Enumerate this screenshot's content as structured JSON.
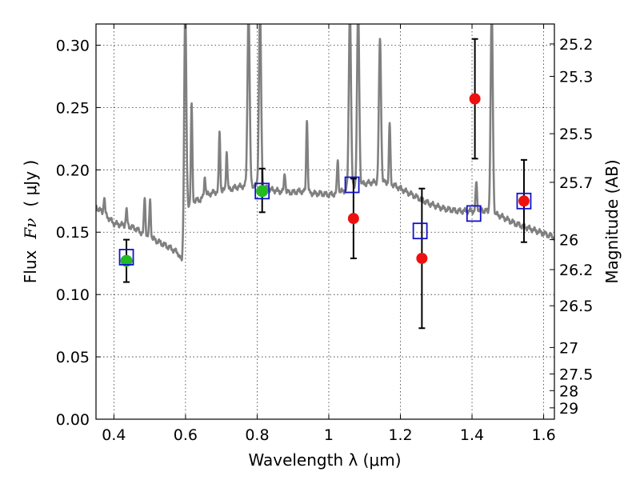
{
  "chart_data": {
    "type": "scatter",
    "xlabel": "Wavelength  λ (μm)",
    "ylabel_left_text": "Flux",
    "ylabel_left_symbol": "Fν",
    "ylabel_left_unit": "( μJy )",
    "ylabel_right": "Magnitude (AB)",
    "xlim": [
      0.35,
      1.63
    ],
    "ylim": [
      0.0,
      0.317
    ],
    "x_ticks": [
      0.4,
      0.6,
      0.8,
      1,
      1.2,
      1.4,
      1.6
    ],
    "x_tick_labels": [
      "0.4",
      "0.6",
      "0.8",
      "1",
      "1.2",
      "1.4",
      "1.6"
    ],
    "y_ticks": [
      0.0,
      0.05,
      0.1,
      0.15,
      0.2,
      0.25,
      0.3
    ],
    "y_tick_labels": [
      "0.00",
      "0.05",
      "0.10",
      "0.15",
      "0.20",
      "0.25",
      "0.30"
    ],
    "right_ticks": [
      {
        "label": "25.2",
        "flux": 0.301
      },
      {
        "label": "25.3",
        "flux": 0.275
      },
      {
        "label": "25.5",
        "flux": 0.229
      },
      {
        "label": "25.7",
        "flux": 0.19
      },
      {
        "label": "26",
        "flux": 0.144
      },
      {
        "label": "26.2",
        "flux": 0.12
      },
      {
        "label": "26.5",
        "flux": 0.091
      },
      {
        "label": "27",
        "flux": 0.0575
      },
      {
        "label": "27.5",
        "flux": 0.0363
      },
      {
        "label": "28",
        "flux": 0.0229
      },
      {
        "label": "29",
        "flux": 0.0091
      }
    ],
    "grid": true,
    "colors": {
      "model": "#808080",
      "green": "#22bb22",
      "red": "#ee1111",
      "square": "#1111cc",
      "errorbar": "#000000"
    },
    "model_spectrum": {
      "name": "",
      "continuum": [
        [
          0.35,
          0.17
        ],
        [
          0.36,
          0.168
        ],
        [
          0.37,
          0.165
        ],
        [
          0.38,
          0.163
        ],
        [
          0.39,
          0.16
        ],
        [
          0.4,
          0.157
        ],
        [
          0.42,
          0.156
        ],
        [
          0.44,
          0.155
        ],
        [
          0.46,
          0.153
        ],
        [
          0.48,
          0.149
        ],
        [
          0.5,
          0.146
        ],
        [
          0.52,
          0.143
        ],
        [
          0.54,
          0.14
        ],
        [
          0.56,
          0.137
        ],
        [
          0.58,
          0.133
        ],
        [
          0.59,
          0.126
        ],
        [
          0.595,
          0.135
        ],
        [
          0.6,
          0.168
        ],
        [
          0.61,
          0.172
        ],
        [
          0.62,
          0.175
        ],
        [
          0.64,
          0.176
        ],
        [
          0.66,
          0.18
        ],
        [
          0.68,
          0.182
        ],
        [
          0.7,
          0.183
        ],
        [
          0.72,
          0.184
        ],
        [
          0.74,
          0.186
        ],
        [
          0.76,
          0.187
        ],
        [
          0.78,
          0.188
        ],
        [
          0.8,
          0.187
        ],
        [
          0.82,
          0.186
        ],
        [
          0.84,
          0.184
        ],
        [
          0.86,
          0.183
        ],
        [
          0.88,
          0.182
        ],
        [
          0.9,
          0.182
        ],
        [
          0.92,
          0.183
        ],
        [
          0.94,
          0.182
        ],
        [
          0.96,
          0.181
        ],
        [
          0.98,
          0.181
        ],
        [
          1.0,
          0.18
        ],
        [
          1.02,
          0.181
        ],
        [
          1.04,
          0.183
        ],
        [
          1.06,
          0.186
        ],
        [
          1.08,
          0.188
        ],
        [
          1.1,
          0.189
        ],
        [
          1.12,
          0.19
        ],
        [
          1.14,
          0.19
        ],
        [
          1.16,
          0.19
        ],
        [
          1.18,
          0.188
        ],
        [
          1.2,
          0.185
        ],
        [
          1.22,
          0.182
        ],
        [
          1.24,
          0.179
        ],
        [
          1.26,
          0.176
        ],
        [
          1.28,
          0.173
        ],
        [
          1.3,
          0.171
        ],
        [
          1.32,
          0.169
        ],
        [
          1.34,
          0.168
        ],
        [
          1.36,
          0.167
        ],
        [
          1.38,
          0.167
        ],
        [
          1.4,
          0.167
        ],
        [
          1.42,
          0.168
        ],
        [
          1.44,
          0.167
        ],
        [
          1.46,
          0.165
        ],
        [
          1.48,
          0.163
        ],
        [
          1.5,
          0.16
        ],
        [
          1.52,
          0.157
        ],
        [
          1.54,
          0.155
        ],
        [
          1.56,
          0.153
        ],
        [
          1.58,
          0.151
        ],
        [
          1.6,
          0.149
        ],
        [
          1.62,
          0.147
        ],
        [
          1.63,
          0.146
        ]
      ],
      "emission_lines": [
        {
          "x": 0.373,
          "peak": 0.178,
          "width": 0.002
        },
        {
          "x": 0.435,
          "peak": 0.168,
          "width": 0.002
        },
        {
          "x": 0.486,
          "peak": 0.178,
          "width": 0.002
        },
        {
          "x": 0.501,
          "peak": 0.176,
          "width": 0.002
        },
        {
          "x": 0.599,
          "peak": 0.33,
          "width": 0.003
        },
        {
          "x": 0.617,
          "peak": 0.253,
          "width": 0.002
        },
        {
          "x": 0.654,
          "peak": 0.195,
          "width": 0.002
        },
        {
          "x": 0.695,
          "peak": 0.23,
          "width": 0.002
        },
        {
          "x": 0.715,
          "peak": 0.215,
          "width": 0.002
        },
        {
          "x": 0.776,
          "peak": 0.33,
          "width": 0.003
        },
        {
          "x": 0.808,
          "peak": 0.33,
          "width": 0.003
        },
        {
          "x": 0.877,
          "peak": 0.198,
          "width": 0.002
        },
        {
          "x": 0.939,
          "peak": 0.242,
          "width": 0.002
        },
        {
          "x": 1.025,
          "peak": 0.208,
          "width": 0.002
        },
        {
          "x": 1.059,
          "peak": 0.33,
          "width": 0.003
        },
        {
          "x": 1.082,
          "peak": 0.33,
          "width": 0.003
        },
        {
          "x": 1.143,
          "peak": 0.305,
          "width": 0.003
        },
        {
          "x": 1.17,
          "peak": 0.237,
          "width": 0.002
        },
        {
          "x": 1.412,
          "peak": 0.19,
          "width": 0.002
        },
        {
          "x": 1.455,
          "peak": 0.33,
          "width": 0.003
        }
      ]
    },
    "observed_green": [
      {
        "x": 0.435,
        "y": 0.127,
        "yerr_low": 0.017,
        "yerr_high": 0.017
      },
      {
        "x": 0.814,
        "y": 0.183,
        "yerr_low": 0.017,
        "yerr_high": 0.018
      }
    ],
    "observed_red": [
      {
        "x": 1.069,
        "y": 0.161,
        "yerr_low": 0.032,
        "yerr_high": 0.032
      },
      {
        "x": 1.26,
        "y": 0.129,
        "yerr_low": 0.056,
        "yerr_high": 0.056
      },
      {
        "x": 1.408,
        "y": 0.257,
        "yerr_low": 0.048,
        "yerr_high": 0.048
      },
      {
        "x": 1.545,
        "y": 0.175,
        "yerr_low": 0.033,
        "yerr_high": 0.033
      }
    ],
    "model_photometry_squares": [
      {
        "x": 0.435,
        "y": 0.13
      },
      {
        "x": 0.814,
        "y": 0.183
      },
      {
        "x": 1.065,
        "y": 0.188
      },
      {
        "x": 1.255,
        "y": 0.151
      },
      {
        "x": 1.405,
        "y": 0.165
      },
      {
        "x": 1.545,
        "y": 0.175
      }
    ]
  }
}
